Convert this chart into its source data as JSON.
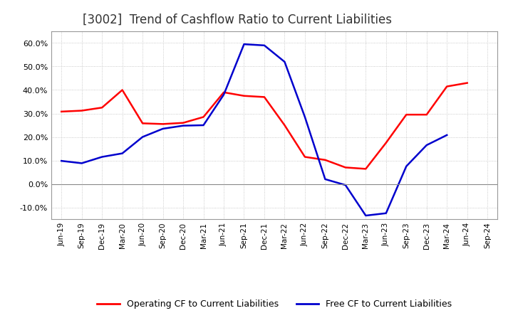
{
  "title": "[3002]  Trend of Cashflow Ratio to Current Liabilities",
  "x_labels": [
    "Jun-19",
    "Sep-19",
    "Dec-19",
    "Mar-20",
    "Jun-20",
    "Sep-20",
    "Dec-20",
    "Mar-21",
    "Jun-21",
    "Sep-21",
    "Dec-21",
    "Mar-22",
    "Jun-22",
    "Sep-22",
    "Dec-22",
    "Mar-23",
    "Jun-23",
    "Sep-23",
    "Dec-23",
    "Mar-24",
    "Jun-24",
    "Sep-24"
  ],
  "operating_cf": [
    0.308,
    0.312,
    0.325,
    0.4,
    0.258,
    0.255,
    0.26,
    0.285,
    0.39,
    0.375,
    0.37,
    0.25,
    0.115,
    0.102,
    0.07,
    0.064,
    0.175,
    0.295,
    0.295,
    0.415,
    0.43,
    null
  ],
  "free_cf": [
    0.098,
    0.088,
    0.115,
    0.13,
    0.2,
    0.235,
    0.248,
    0.25,
    0.38,
    0.595,
    0.59,
    0.52,
    0.285,
    0.02,
    -0.005,
    -0.135,
    -0.125,
    0.075,
    0.165,
    0.208,
    null,
    null
  ],
  "operating_color": "#ff0000",
  "free_color": "#0000cd",
  "ylim": [
    -0.15,
    0.65
  ],
  "yticks": [
    -0.1,
    0.0,
    0.1,
    0.2,
    0.3,
    0.4,
    0.5,
    0.6
  ],
  "background_color": "#ffffff",
  "grid_color": "#bbbbbb",
  "title_fontsize": 12,
  "legend_labels": [
    "Operating CF to Current Liabilities",
    "Free CF to Current Liabilities"
  ]
}
